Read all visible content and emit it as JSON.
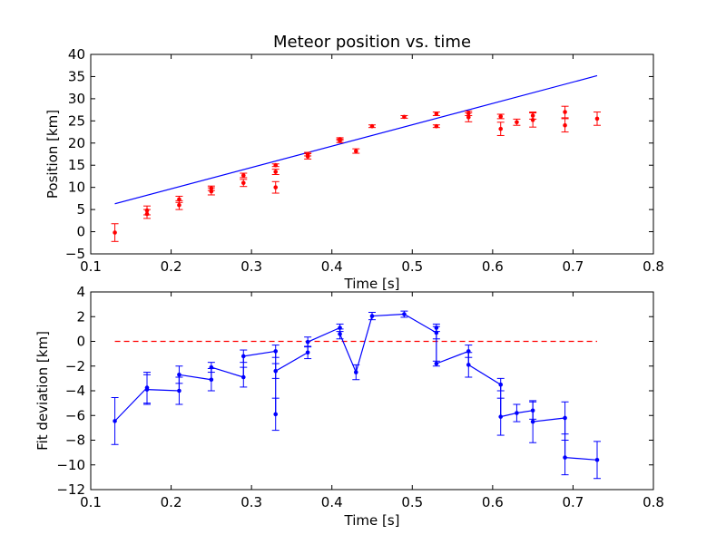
{
  "chart_data": [
    {
      "type": "scatter",
      "title": "Meteor position vs. time",
      "xlabel": "Time [s]",
      "ylabel": "Position [km]",
      "xlim": [
        0.1,
        0.8
      ],
      "ylim": [
        -5,
        40
      ],
      "xticks": [
        "0.1",
        "0.2",
        "0.3",
        "0.4",
        "0.5",
        "0.6",
        "0.7",
        "0.8"
      ],
      "yticks": [
        "−5",
        "0",
        "5",
        "10",
        "15",
        "20",
        "25",
        "30",
        "35",
        "40"
      ],
      "grid": false,
      "colors": {
        "points": "#ff0000",
        "fit_line": "#0000ff"
      },
      "fit_line": {
        "x": [
          0.13,
          0.73
        ],
        "y": [
          6.3,
          35.2
        ]
      },
      "points": [
        {
          "x": 0.13,
          "y": -0.2,
          "err": 2.0
        },
        {
          "x": 0.17,
          "y": 4.0,
          "err": 1.0
        },
        {
          "x": 0.17,
          "y": 4.8,
          "err": 1.0
        },
        {
          "x": 0.21,
          "y": 6.0,
          "err": 1.0
        },
        {
          "x": 0.21,
          "y": 7.3,
          "err": 0.7
        },
        {
          "x": 0.25,
          "y": 9.1,
          "err": 0.8
        },
        {
          "x": 0.25,
          "y": 9.8,
          "err": 0.5
        },
        {
          "x": 0.29,
          "y": 11.0,
          "err": 0.8
        },
        {
          "x": 0.29,
          "y": 12.7,
          "err": 0.5
        },
        {
          "x": 0.33,
          "y": 10.0,
          "err": 1.3
        },
        {
          "x": 0.33,
          "y": 13.5,
          "err": 0.6
        },
        {
          "x": 0.33,
          "y": 15.0,
          "err": 0.3
        },
        {
          "x": 0.37,
          "y": 17.0,
          "err": 0.6
        },
        {
          "x": 0.37,
          "y": 17.5,
          "err": 0.4
        },
        {
          "x": 0.41,
          "y": 20.5,
          "err": 0.4
        },
        {
          "x": 0.41,
          "y": 20.9,
          "err": 0.3
        },
        {
          "x": 0.43,
          "y": 18.2,
          "err": 0.5
        },
        {
          "x": 0.45,
          "y": 23.8,
          "err": 0.3
        },
        {
          "x": 0.49,
          "y": 25.9,
          "err": 0.3
        },
        {
          "x": 0.53,
          "y": 23.8,
          "err": 0.3
        },
        {
          "x": 0.53,
          "y": 26.6,
          "err": 0.4
        },
        {
          "x": 0.57,
          "y": 25.8,
          "err": 1.0
        },
        {
          "x": 0.57,
          "y": 26.7,
          "err": 0.5
        },
        {
          "x": 0.61,
          "y": 23.2,
          "err": 1.5
        },
        {
          "x": 0.61,
          "y": 26.0,
          "err": 0.5
        },
        {
          "x": 0.63,
          "y": 24.7,
          "err": 0.7
        },
        {
          "x": 0.65,
          "y": 25.2,
          "err": 1.6
        },
        {
          "x": 0.65,
          "y": 26.2,
          "err": 0.8
        },
        {
          "x": 0.69,
          "y": 24.0,
          "err": 1.5
        },
        {
          "x": 0.69,
          "y": 27.0,
          "err": 1.3
        },
        {
          "x": 0.73,
          "y": 25.5,
          "err": 1.5
        }
      ]
    },
    {
      "type": "line",
      "title": "",
      "xlabel": "Time [s]",
      "ylabel": "Fit deviation [km]",
      "xlim": [
        0.1,
        0.8
      ],
      "ylim": [
        -12,
        4
      ],
      "xticks": [
        "0.1",
        "0.2",
        "0.3",
        "0.4",
        "0.5",
        "0.6",
        "0.7",
        "0.8"
      ],
      "yticks": [
        "−12",
        "−10",
        "−8",
        "−6",
        "−4",
        "−2",
        "0",
        "2",
        "4"
      ],
      "grid": false,
      "colors": {
        "series": "#0000ff",
        "zero_line": "#ff0000"
      },
      "reference_line": {
        "x": [
          0.13,
          0.73
        ],
        "y": [
          0,
          0
        ],
        "style": "dashed"
      },
      "points": [
        {
          "x": 0.13,
          "y": -6.45,
          "err": 1.9
        },
        {
          "x": 0.17,
          "y": -3.75,
          "err": 1.25
        },
        {
          "x": 0.17,
          "y": -3.9,
          "err": 1.2
        },
        {
          "x": 0.21,
          "y": -4.0,
          "err": 1.1
        },
        {
          "x": 0.21,
          "y": -2.7,
          "err": 0.7
        },
        {
          "x": 0.25,
          "y": -3.1,
          "err": 0.9
        },
        {
          "x": 0.25,
          "y": -2.1,
          "err": 0.4
        },
        {
          "x": 0.29,
          "y": -2.9,
          "err": 0.8
        },
        {
          "x": 0.29,
          "y": -1.2,
          "err": 0.5
        },
        {
          "x": 0.33,
          "y": -0.8,
          "err": 0.5
        },
        {
          "x": 0.33,
          "y": -5.9,
          "err": 1.3
        },
        {
          "x": 0.33,
          "y": -2.4,
          "err": 0.6
        },
        {
          "x": 0.37,
          "y": -0.9,
          "err": 0.5
        },
        {
          "x": 0.37,
          "y": -0.05,
          "err": 0.4
        },
        {
          "x": 0.41,
          "y": 1.1,
          "err": 0.3
        },
        {
          "x": 0.41,
          "y": 0.6,
          "err": 0.4
        },
        {
          "x": 0.43,
          "y": -2.5,
          "err": 0.6
        },
        {
          "x": 0.45,
          "y": 2.05,
          "err": 0.3
        },
        {
          "x": 0.49,
          "y": 2.2,
          "err": 0.25
        },
        {
          "x": 0.53,
          "y": 0.7,
          "err": 0.5
        },
        {
          "x": 0.53,
          "y": 1.1,
          "err": 0.3
        },
        {
          "x": 0.53,
          "y": -1.8,
          "err": 0.2
        },
        {
          "x": 0.57,
          "y": -0.8,
          "err": 0.5
        },
        {
          "x": 0.57,
          "y": -1.9,
          "err": 1.0
        },
        {
          "x": 0.61,
          "y": -3.5,
          "err": 0.5
        },
        {
          "x": 0.61,
          "y": -6.1,
          "err": 1.5
        },
        {
          "x": 0.63,
          "y": -5.8,
          "err": 0.7
        },
        {
          "x": 0.65,
          "y": -5.6,
          "err": 0.7
        },
        {
          "x": 0.65,
          "y": -6.5,
          "err": 1.7
        },
        {
          "x": 0.69,
          "y": -6.2,
          "err": 1.3
        },
        {
          "x": 0.69,
          "y": -9.4,
          "err": 1.4
        },
        {
          "x": 0.73,
          "y": -9.6,
          "err": 1.5
        }
      ]
    }
  ]
}
